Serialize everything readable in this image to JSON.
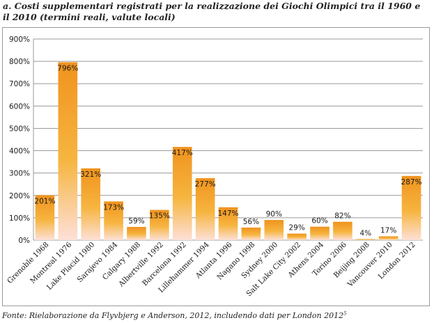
{
  "figure": {
    "title": "a. Costi supplementari registrati per la realizzazione dei Giochi Olimpici tra il 1960 e il 2010 (termini reali, valute locali)",
    "source": "Fonte: Rielaborazione da Flyvbjerg e Anderson, 2012, includendo dati per London 2012",
    "source_note_marker": "5"
  },
  "colors": {
    "bar_top": "#f0931e",
    "bar_mid": "#f6b540",
    "bar_bottom": "#fde0d8",
    "grid": "#9a9a9a",
    "text": "#1a1a1a"
  },
  "chart_data": {
    "type": "bar",
    "title": "",
    "xlabel": "",
    "ylabel": "",
    "ylim": [
      0,
      900
    ],
    "yticks": [
      0,
      100,
      200,
      300,
      400,
      500,
      600,
      700,
      800,
      900
    ],
    "ytick_labels": [
      "0%",
      "100%",
      "200%",
      "300%",
      "400%",
      "500%",
      "600%",
      "700%",
      "800%",
      "900%"
    ],
    "grid": true,
    "legend": "none",
    "categories": [
      "Grenoble 1968",
      "Montreal 1976",
      "Lake Placid 1980",
      "Sarajevo 1984",
      "Calgary 1988",
      "Albertville 1992",
      "Barcelona 1992",
      "Lillehammer 1994",
      "Atlanta 1996",
      "Nagano 1998",
      "Sydney 2000",
      "Salt Lake City 2002",
      "Athens 2004",
      "Torino 2006",
      "Beijing 2008",
      "Vancouver 2010",
      "London 2012"
    ],
    "values": [
      201,
      796,
      321,
      173,
      59,
      135,
      417,
      277,
      147,
      56,
      90,
      29,
      60,
      82,
      4,
      17,
      287
    ],
    "data_labels": [
      "201%",
      "796%",
      "321%",
      "173%",
      "59%",
      "135%",
      "417%",
      "277%",
      "147%",
      "56%",
      "90%",
      "29%",
      "60%",
      "82%",
      "4%",
      "17%",
      "287%"
    ]
  }
}
